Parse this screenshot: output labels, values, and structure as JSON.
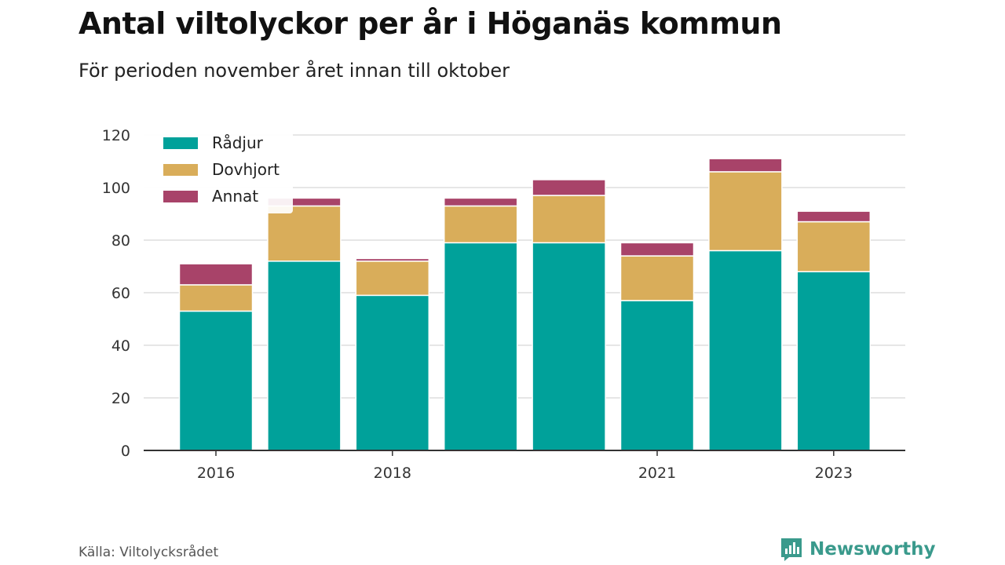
{
  "title": "Antal viltolyckor per år i Höganäs kommun",
  "subtitle": "För perioden november året innan till oktober",
  "source": "Källa: Viltolycksrådet",
  "brand": "Newsworthy",
  "colors": {
    "radjur": "#00a19a",
    "dovhjort": "#d9ad5a",
    "annat": "#a84369",
    "grid": "#dddddd",
    "axis": "#333333",
    "brand": "#3a9a8c"
  },
  "chart_data": {
    "type": "bar",
    "stacked": true,
    "categories": [
      "2016",
      "2017",
      "2018",
      "2019",
      "2020",
      "2021",
      "2022",
      "2023"
    ],
    "x_tick_labels": [
      "2016",
      "",
      "2018",
      "",
      "",
      "2021",
      "",
      "2023"
    ],
    "series": [
      {
        "name": "Rådjur",
        "color": "#00a19a",
        "values": [
          53,
          72,
          59,
          79,
          79,
          57,
          76,
          68
        ]
      },
      {
        "name": "Dovhjort",
        "color": "#d9ad5a",
        "values": [
          10,
          21,
          13,
          14,
          18,
          17,
          30,
          19
        ]
      },
      {
        "name": "Annat",
        "color": "#a84369",
        "values": [
          8,
          3,
          1,
          3,
          6,
          5,
          5,
          4
        ]
      }
    ],
    "ylim": [
      0,
      120
    ],
    "yticks": [
      0,
      20,
      40,
      60,
      80,
      100,
      120
    ],
    "grid": true,
    "legend": "top-left"
  }
}
